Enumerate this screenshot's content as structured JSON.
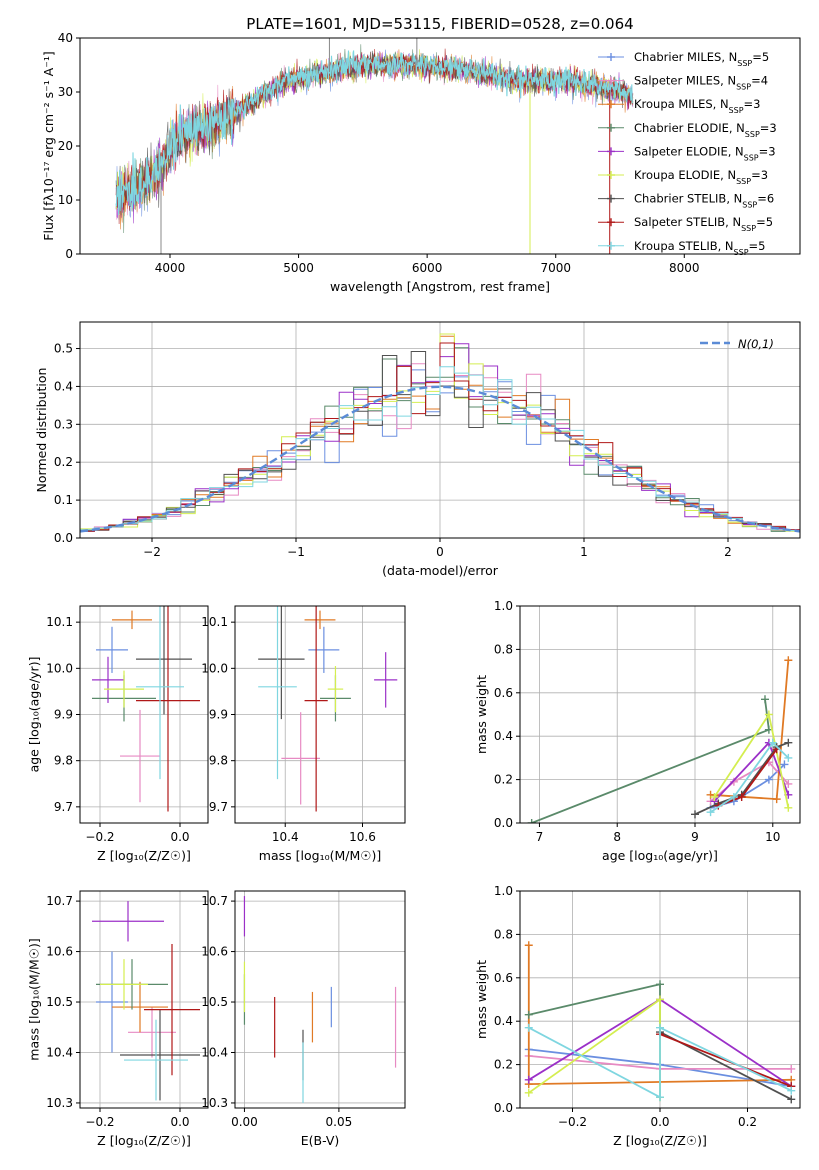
{
  "figure": {
    "title": "PLATE=1601, MJD=53115, FIBERID=0528, z=0.064"
  },
  "colors": {
    "gaussian": "#5b8bd6",
    "grid": "#b0b0b0"
  },
  "models": [
    {
      "name": "Chabrier MILES",
      "nssp": "5",
      "color": "#6b8fe0",
      "marker": "+"
    },
    {
      "name": "Salpeter MILES",
      "nssp": "4",
      "color": "#e78ac3",
      "marker": "+"
    },
    {
      "name": "Kroupa MILES",
      "nssp": "3",
      "color": "#e07a25",
      "marker": "+"
    },
    {
      "name": "Chabrier ELODIE",
      "nssp": "3",
      "color": "#5a8a6a",
      "marker": "+"
    },
    {
      "name": "Salpeter ELODIE",
      "nssp": "3",
      "color": "#9b30c8",
      "marker": "+"
    },
    {
      "name": "Kroupa ELODIE",
      "nssp": "3",
      "color": "#d4ee50",
      "marker": "+"
    },
    {
      "name": "Chabrier STELIB",
      "nssp": "6",
      "color": "#505050",
      "marker": "+"
    },
    {
      "name": "Salpeter STELIB",
      "nssp": "5",
      "color": "#b01818",
      "marker": "+"
    },
    {
      "name": "Kroupa STELIB",
      "nssp": "5",
      "color": "#7fd6e0",
      "marker": "+"
    }
  ],
  "chart_data": [
    {
      "id": "spectrum",
      "type": "line",
      "title": "PLATE=1601, MJD=53115, FIBERID=0528, z=0.064",
      "xlabel": "wavelength [Angstrom, rest frame]",
      "ylabel": "Flux [fλ10⁻¹⁷ erg cm⁻² s⁻¹ A⁻¹]",
      "xlim": [
        3300,
        8900
      ],
      "ylim": [
        0,
        40
      ],
      "xticks": [
        4000,
        5000,
        6000,
        7000,
        8000
      ],
      "yticks": [
        0,
        10,
        20,
        30,
        40
      ],
      "grid": false,
      "legend": "upper right",
      "continuum": {
        "x": [
          3580,
          3700,
          3850,
          3950,
          4050,
          4200,
          4350,
          4500,
          4700,
          4900,
          5100,
          5300,
          5500,
          5700,
          5900,
          6100,
          6300,
          6500,
          6700,
          6900,
          7100,
          7300,
          7500,
          7600
        ],
        "y": [
          10,
          12,
          14,
          17,
          21,
          23,
          24,
          26,
          29,
          32,
          33,
          34,
          35,
          35,
          35,
          34.5,
          34,
          33,
          32,
          32,
          32,
          31,
          30,
          29
        ]
      },
      "spikes": [
        {
          "x": 3930,
          "y": 0
        },
        {
          "x": 5240,
          "y": 40
        },
        {
          "x": 5920,
          "y": 40
        },
        {
          "x": 6800,
          "y": 0
        },
        {
          "x": 7420,
          "y": 0
        }
      ]
    },
    {
      "id": "residuals",
      "type": "line",
      "xlabel": "(data-model)/error",
      "ylabel": "Normed distribution",
      "xlim": [
        -2.5,
        2.5
      ],
      "ylim": [
        0,
        0.57
      ],
      "xticks": [
        -2,
        -1,
        0,
        1,
        2
      ],
      "yticks": [
        0.0,
        0.1,
        0.2,
        0.3,
        0.4,
        0.5
      ],
      "grid": true,
      "legend": "upper right",
      "gaussian_label": "N(0,1)",
      "bin_width": 0.1
    },
    {
      "id": "age-vs-Z",
      "type": "scatter",
      "xlabel": "Z [log₁₀(Z/Z☉)]",
      "ylabel": "age  [log₁₀(age/yr)]",
      "xlim": [
        -0.25,
        0.07
      ],
      "ylim": [
        9.665,
        10.135
      ],
      "xticks": [
        -0.2,
        0.0
      ],
      "yticks": [
        9.7,
        9.8,
        9.9,
        10.0,
        10.1
      ],
      "grid": true,
      "points": [
        {
          "model": 0,
          "x": -0.17,
          "y": 10.04,
          "xerr": 0.04,
          "yerr": 0.05
        },
        {
          "model": 1,
          "x": -0.1,
          "y": 9.81,
          "xerr": 0.05,
          "yerr": 0.1
        },
        {
          "model": 2,
          "x": -0.12,
          "y": 10.105,
          "xerr": 0.05,
          "yerr": 0.02
        },
        {
          "model": 3,
          "x": -0.14,
          "y": 9.935,
          "xerr": 0.08,
          "yerr": 0.05
        },
        {
          "model": 4,
          "x": -0.18,
          "y": 9.975,
          "xerr": 0.04,
          "yerr": 0.05
        },
        {
          "model": 5,
          "x": -0.14,
          "y": 9.955,
          "xerr": 0.05,
          "yerr": 0.04
        },
        {
          "model": 6,
          "x": -0.04,
          "y": 10.02,
          "xerr": 0.07,
          "yerr": 0.12
        },
        {
          "model": 7,
          "x": -0.03,
          "y": 9.93,
          "xerr": 0.08,
          "yerr": 0.24
        },
        {
          "model": 8,
          "x": -0.05,
          "y": 9.96,
          "xerr": 0.06,
          "yerr": 0.2
        }
      ]
    },
    {
      "id": "age-vs-mass",
      "type": "scatter",
      "xlabel": "mass [log₁₀(M/M☉)]",
      "ylabel": "",
      "xlim": [
        10.27,
        10.71
      ],
      "ylim": [
        9.665,
        10.135
      ],
      "xticks": [
        10.4,
        10.6
      ],
      "yticks": [
        9.7,
        9.8,
        9.9,
        10.0,
        10.1
      ],
      "grid": true,
      "points": [
        {
          "model": 0,
          "x": 10.5,
          "y": 10.04,
          "xerr": 0.04,
          "yerr": 0.05
        },
        {
          "model": 1,
          "x": 10.44,
          "y": 9.805,
          "xerr": 0.05,
          "yerr": 0.1
        },
        {
          "model": 2,
          "x": 10.49,
          "y": 10.105,
          "xerr": 0.04,
          "yerr": 0.02
        },
        {
          "model": 3,
          "x": 10.53,
          "y": 9.935,
          "xerr": 0.04,
          "yerr": 0.05
        },
        {
          "model": 4,
          "x": 10.66,
          "y": 9.975,
          "xerr": 0.03,
          "yerr": 0.06
        },
        {
          "model": 5,
          "x": 10.53,
          "y": 9.955,
          "xerr": 0.02,
          "yerr": 0.05
        },
        {
          "model": 6,
          "x": 10.39,
          "y": 10.02,
          "xerr": 0.06,
          "yerr": 0.13
        },
        {
          "model": 7,
          "x": 10.48,
          "y": 9.93,
          "xerr": 0.03,
          "yerr": 0.24
        },
        {
          "model": 8,
          "x": 10.38,
          "y": 9.96,
          "xerr": 0.05,
          "yerr": 0.2
        }
      ]
    },
    {
      "id": "weight-vs-age",
      "type": "line",
      "xlabel": "age  [log₁₀(age/yr)]",
      "ylabel": "mass weight",
      "xlim": [
        6.75,
        10.35
      ],
      "ylim": [
        0,
        1.0
      ],
      "xticks": [
        7,
        8,
        9,
        10
      ],
      "yticks": [
        0.0,
        0.2,
        0.4,
        0.6,
        0.8,
        1.0
      ],
      "grid": true,
      "series": [
        {
          "model": 0,
          "x": [
            9.2,
            9.5,
            9.95,
            10.15
          ],
          "y": [
            0.07,
            0.1,
            0.2,
            0.27
          ]
        },
        {
          "model": 1,
          "x": [
            9.2,
            9.5,
            9.95,
            10.2
          ],
          "y": [
            0.1,
            0.19,
            0.28,
            0.18
          ]
        },
        {
          "model": 2,
          "x": [
            9.2,
            10.05,
            10.2
          ],
          "y": [
            0.13,
            0.11,
            0.75
          ]
        },
        {
          "model": 3,
          "x": [
            6.9,
            9.95,
            9.9
          ],
          "y": [
            0.0,
            0.43,
            0.57
          ]
        },
        {
          "model": 4,
          "x": [
            9.25,
            9.95,
            10.2
          ],
          "y": [
            0.1,
            0.37,
            0.13
          ]
        },
        {
          "model": 5,
          "x": [
            9.25,
            9.95,
            10.2
          ],
          "y": [
            0.12,
            0.5,
            0.07
          ]
        },
        {
          "model": 6,
          "x": [
            9.0,
            9.3,
            9.6,
            10.05,
            10.2
          ],
          "y": [
            0.04,
            0.09,
            0.13,
            0.35,
            0.37
          ]
        },
        {
          "model": 7,
          "x": [
            9.3,
            9.6,
            10.05
          ],
          "y": [
            0.08,
            0.12,
            0.34
          ]
        },
        {
          "model": 8,
          "x": [
            9.2,
            9.5,
            10.0,
            10.2
          ],
          "y": [
            0.05,
            0.12,
            0.37,
            0.3
          ]
        }
      ]
    },
    {
      "id": "mass-vs-Z",
      "type": "scatter",
      "xlabel": "Z [log₁₀(Z/Z☉)]",
      "ylabel": "mass [log₁₀(M/M☉)]",
      "xlim": [
        -0.25,
        0.07
      ],
      "ylim": [
        10.29,
        10.72
      ],
      "xticks": [
        -0.2,
        0.0
      ],
      "yticks": [
        10.3,
        10.4,
        10.5,
        10.6,
        10.7
      ],
      "grid": true,
      "points": [
        {
          "model": 0,
          "x": -0.17,
          "y": 10.5,
          "xerr": 0.04,
          "yerr": 0.1
        },
        {
          "model": 1,
          "x": -0.07,
          "y": 10.44,
          "xerr": 0.06,
          "yerr": 0.05
        },
        {
          "model": 2,
          "x": -0.1,
          "y": 10.49,
          "xerr": 0.07,
          "yerr": 0.05
        },
        {
          "model": 3,
          "x": -0.12,
          "y": 10.535,
          "xerr": 0.09,
          "yerr": 0.05
        },
        {
          "model": 4,
          "x": -0.13,
          "y": 10.66,
          "xerr": 0.09,
          "yerr": 0.04
        },
        {
          "model": 5,
          "x": -0.14,
          "y": 10.535,
          "xerr": 0.06,
          "yerr": 0.05
        },
        {
          "model": 6,
          "x": -0.05,
          "y": 10.395,
          "xerr": 0.1,
          "yerr": 0.09
        },
        {
          "model": 7,
          "x": -0.02,
          "y": 10.485,
          "xerr": 0.07,
          "yerr": 0.13
        },
        {
          "model": 8,
          "x": -0.06,
          "y": 10.385,
          "xerr": 0.08,
          "yerr": 0.08
        }
      ]
    },
    {
      "id": "mass-vs-ebv",
      "type": "scatter",
      "xlabel": "E(B-V)",
      "ylabel": "",
      "xlim": [
        -0.005,
        0.085
      ],
      "ylim": [
        10.29,
        10.72
      ],
      "xticks": [
        0.0,
        0.05
      ],
      "yticks": [
        10.3,
        10.4,
        10.5,
        10.6,
        10.7
      ],
      "grid": true,
      "points": [
        {
          "model": 0,
          "x": 0.046,
          "y": 10.49,
          "xerr": 0.0,
          "yerr": 0.04
        },
        {
          "model": 1,
          "x": 0.08,
          "y": 10.45,
          "xerr": 0.0,
          "yerr": 0.08
        },
        {
          "model": 2,
          "x": 0.036,
          "y": 10.47,
          "xerr": 0.0,
          "yerr": 0.05
        },
        {
          "model": 3,
          "x": 0.0,
          "y": 10.505,
          "xerr": 0.0,
          "yerr": 0.05
        },
        {
          "model": 4,
          "x": 0.0,
          "y": 10.67,
          "xerr": 0.0,
          "yerr": 0.04
        },
        {
          "model": 5,
          "x": 0.0,
          "y": 10.53,
          "xerr": 0.0,
          "yerr": 0.05
        },
        {
          "model": 6,
          "x": 0.031,
          "y": 10.395,
          "xerr": 0.0,
          "yerr": 0.05
        },
        {
          "model": 7,
          "x": 0.016,
          "y": 10.45,
          "xerr": 0.0,
          "yerr": 0.06
        },
        {
          "model": 8,
          "x": 0.031,
          "y": 10.36,
          "xerr": 0.0,
          "yerr": 0.06
        }
      ]
    },
    {
      "id": "weight-vs-Z",
      "type": "line",
      "xlabel": "Z [log₁₀(Z/Z☉)]",
      "ylabel": "mass weight",
      "xlim": [
        -0.32,
        0.32
      ],
      "ylim": [
        0,
        1.0
      ],
      "xticks": [
        -0.2,
        0.0,
        0.2
      ],
      "yticks": [
        0.0,
        0.2,
        0.4,
        0.6,
        0.8,
        1.0
      ],
      "grid": true,
      "series": [
        {
          "model": 0,
          "x": [
            -0.3,
            0.0,
            0.3
          ],
          "y": [
            0.27,
            0.2,
            0.1
          ]
        },
        {
          "model": 1,
          "x": [
            -0.3,
            0.0,
            0.3
          ],
          "y": [
            0.24,
            0.18,
            0.18
          ]
        },
        {
          "model": 2,
          "x": [
            -0.3,
            -0.3,
            0.3
          ],
          "y": [
            0.75,
            0.11,
            0.13
          ]
        },
        {
          "model": 3,
          "x": [
            -0.3,
            0.0,
            0.0
          ],
          "y": [
            0.43,
            0.57,
            0.05
          ]
        },
        {
          "model": 4,
          "x": [
            -0.3,
            0.0,
            0.3
          ],
          "y": [
            0.13,
            0.5,
            0.1
          ]
        },
        {
          "model": 5,
          "x": [
            -0.3,
            0.0,
            0.0
          ],
          "y": [
            0.07,
            0.5,
            0.05
          ]
        },
        {
          "model": 6,
          "x": [
            0.0,
            0.3
          ],
          "y": [
            0.35,
            0.04
          ]
        },
        {
          "model": 7,
          "x": [
            0.0,
            0.3
          ],
          "y": [
            0.34,
            0.1
          ]
        },
        {
          "model": 8,
          "x": [
            -0.3,
            0.0,
            0.0,
            0.3
          ],
          "y": [
            0.37,
            0.05,
            0.37,
            0.08
          ]
        }
      ]
    }
  ]
}
